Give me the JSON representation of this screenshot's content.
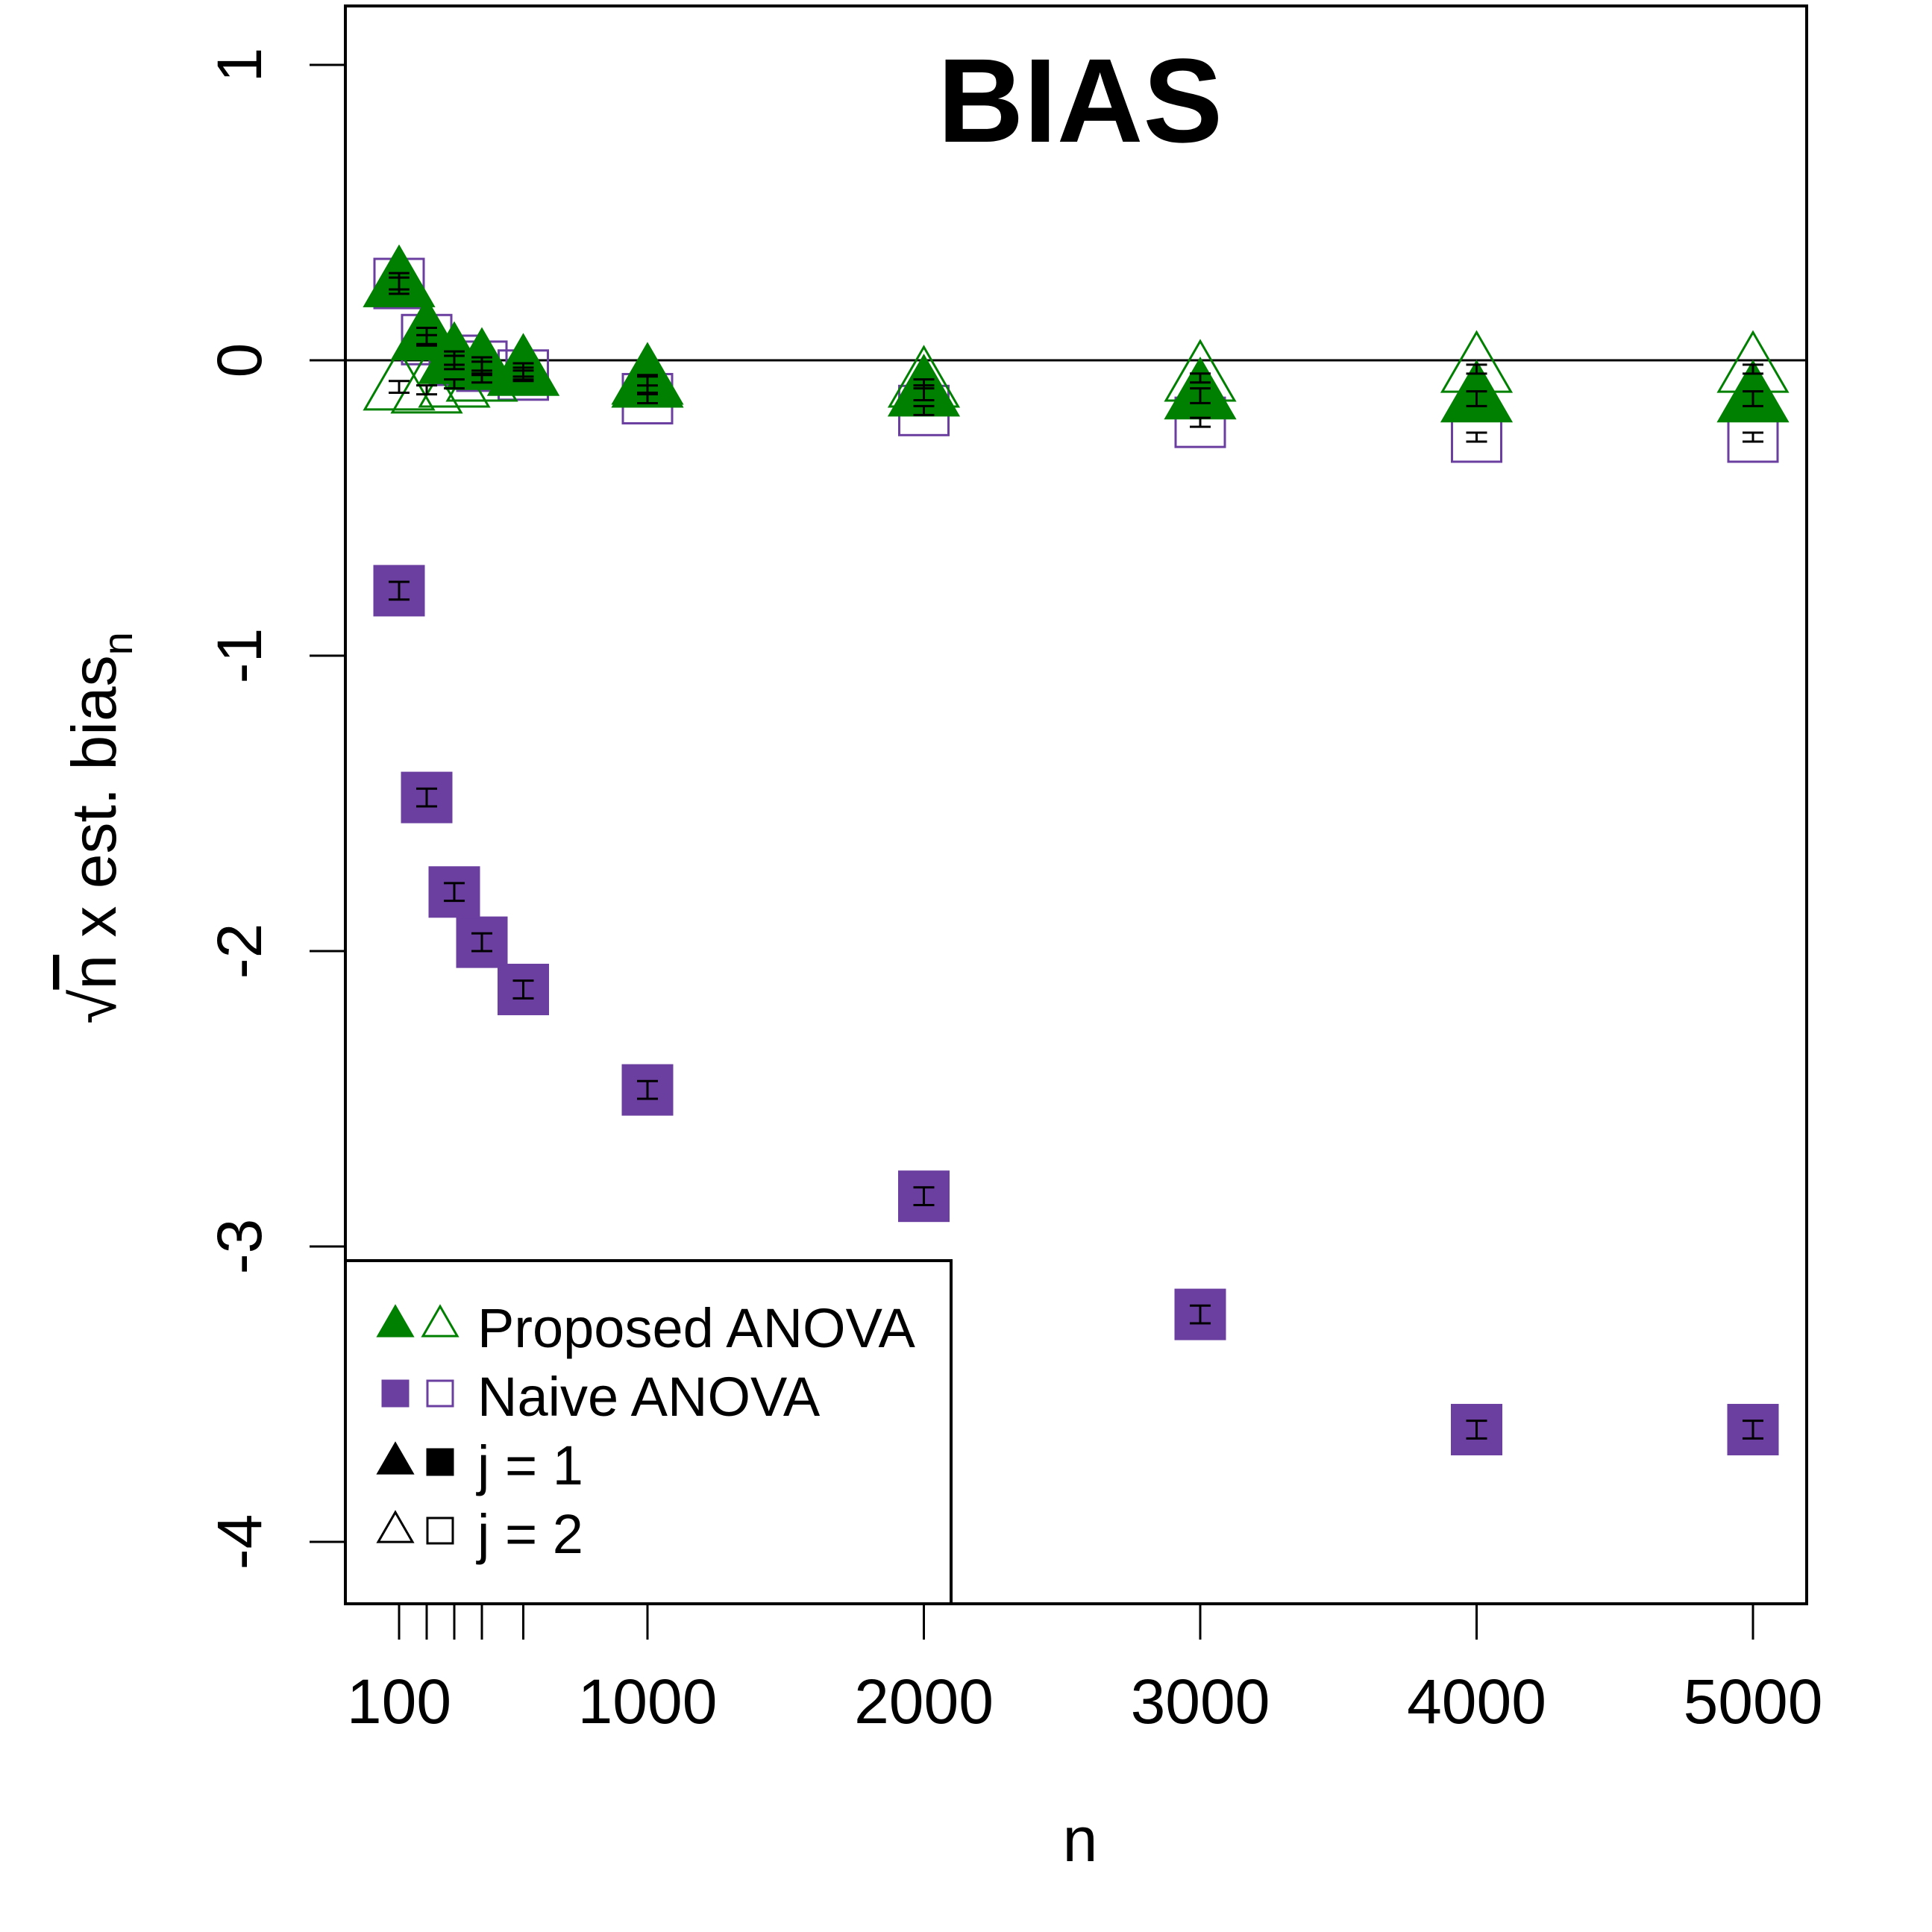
{
  "chart_data": {
    "type": "scatter",
    "title": "BIAS",
    "xlabel": "n",
    "ylabel_parts": {
      "radical": "√",
      "var": "n",
      "rest": " x est. bias",
      "sub": "n"
    },
    "xlim": [
      0,
      5000
    ],
    "ylim": [
      -4,
      1
    ],
    "x_ticks": [
      100,
      200,
      300,
      400,
      550,
      1000,
      2000,
      3000,
      4000,
      5000
    ],
    "x_tick_labels": [
      "100",
      "",
      "",
      "",
      "",
      "1000",
      "2000",
      "3000",
      "4000",
      "5000"
    ],
    "y_ticks": [
      -4,
      -3,
      -2,
      -1,
      0,
      1
    ],
    "y_tick_labels": [
      "-4",
      "-3",
      "-2",
      "-1",
      "0",
      "1"
    ],
    "reference_line_y": 0,
    "x": [
      100,
      200,
      300,
      400,
      550,
      1000,
      2000,
      3000,
      4000,
      5000
    ],
    "series": [
      {
        "method": "Proposed ANOVA",
        "j": 1,
        "marker": "triangle",
        "filled": true,
        "color": "#008000",
        "values": [
          0.26,
          0.08,
          0.0,
          -0.02,
          -0.04,
          -0.08,
          -0.11,
          -0.12,
          -0.13,
          -0.13
        ],
        "err": [
          0.035,
          0.03,
          0.03,
          0.03,
          0.03,
          0.03,
          0.025,
          0.025,
          0.025,
          0.025
        ]
      },
      {
        "method": "Proposed ANOVA",
        "j": 2,
        "marker": "triangle",
        "filled": false,
        "color": "#008000",
        "values": [
          -0.09,
          -0.1,
          -0.08,
          -0.06,
          -0.04,
          -0.07,
          -0.08,
          -0.06,
          -0.03,
          -0.03
        ],
        "err": [
          0.02,
          0.015,
          0.015,
          0.015,
          0.015,
          0.015,
          0.015,
          0.015,
          0.015,
          0.015
        ]
      },
      {
        "method": "Naive ANOVA",
        "j": 1,
        "marker": "square",
        "filled": true,
        "color": "#6b3fa0",
        "values": [
          -0.78,
          -1.48,
          -1.8,
          -1.97,
          -2.13,
          -2.47,
          -2.83,
          -3.23,
          -3.62,
          -3.62
        ],
        "err": [
          0.03,
          0.03,
          0.03,
          0.03,
          0.03,
          0.03,
          0.03,
          0.03,
          0.03,
          0.03
        ]
      },
      {
        "method": "Naive ANOVA",
        "j": 2,
        "marker": "square",
        "filled": false,
        "color": "#6b3fa0",
        "values": [
          0.26,
          0.07,
          0.0,
          -0.02,
          -0.05,
          -0.13,
          -0.17,
          -0.21,
          -0.26,
          -0.26
        ],
        "err": [
          0.02,
          0.015,
          0.015,
          0.015,
          0.015,
          0.015,
          0.015,
          0.015,
          0.015,
          0.015
        ]
      }
    ],
    "legend": {
      "position": "bottom-left",
      "entries": [
        {
          "label": "Proposed ANOVA",
          "markers": [
            "triangle-filled",
            "triangle-open"
          ],
          "color": "#008000"
        },
        {
          "label": "Naive ANOVA",
          "markers": [
            "square-filled",
            "square-open"
          ],
          "color": "#6b3fa0"
        },
        {
          "label": "j = 1",
          "markers": [
            "triangle-filled",
            "square-filled"
          ],
          "color": "#000000"
        },
        {
          "label": "j = 2",
          "markers": [
            "triangle-open",
            "square-open"
          ],
          "color": "#000000"
        }
      ]
    }
  }
}
